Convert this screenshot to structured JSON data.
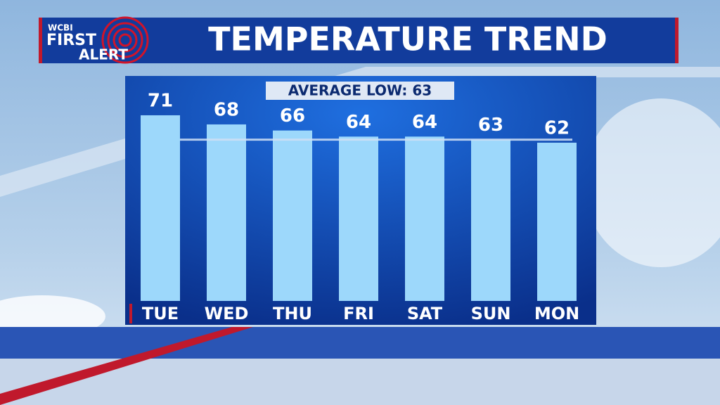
{
  "logo": {
    "station": "WCBI",
    "line1": "FIRST",
    "line2": "ALERT"
  },
  "chart_data": {
    "type": "bar",
    "title": "TEMPERATURE TREND",
    "categories": [
      "TUE",
      "WED",
      "THU",
      "FRI",
      "SAT",
      "SUN",
      "MON"
    ],
    "values": [
      71,
      68,
      66,
      64,
      64,
      63,
      62
    ],
    "color": "#9dd8fb",
    "ylim": [
      10,
      80
    ],
    "reference_line": {
      "value": 63,
      "label": "AVERAGE LOW: 63"
    }
  }
}
